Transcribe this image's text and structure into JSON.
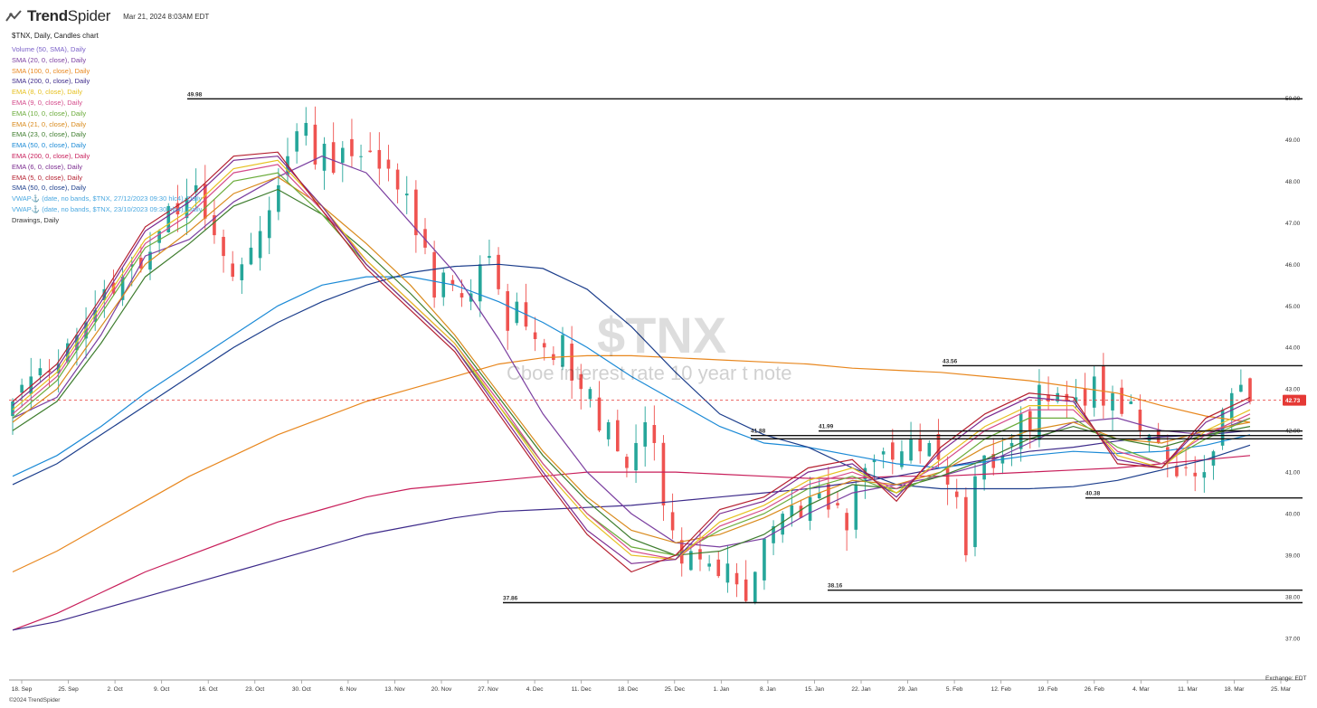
{
  "header": {
    "logo_text_bold": "Trend",
    "logo_text_light": "Spider",
    "timestamp": "Mar 21, 2024 8:03AM EDT",
    "subtitle": "$TNX, Daily, Candles chart",
    "watermark_symbol": "$TNX",
    "watermark_name": "Cboe interest rate 10 year t note",
    "copyright": "©2024 TrendSpider",
    "exchange": "Exchange: EDT"
  },
  "legend": [
    {
      "label": "Volume (50, SMA), Daily",
      "color": "#7b61c9"
    },
    {
      "label": "SMA (20, 0, close), Daily",
      "color": "#7b3fa0"
    },
    {
      "label": "SMA (100, 0, close), Daily",
      "color": "#e8871e"
    },
    {
      "label": "SMA (200, 0, close), Daily",
      "color": "#3d2a8a"
    },
    {
      "label": "EMA (8, 0, close), Daily",
      "color": "#e6c020"
    },
    {
      "label": "EMA (9, 0, close), Daily",
      "color": "#d44a8a"
    },
    {
      "label": "EMA (10, 0, close), Daily",
      "color": "#6aab3a"
    },
    {
      "label": "EMA (21, 0, close), Daily",
      "color": "#d98a1c"
    },
    {
      "label": "EMA (23, 0, close), Daily",
      "color": "#3e7d2e"
    },
    {
      "label": "EMA (50, 0, close), Daily",
      "color": "#1b8ad6"
    },
    {
      "label": "EMA (200, 0, close), Daily",
      "color": "#c81e5a"
    },
    {
      "label": "EMA (6, 0, close), Daily",
      "color": "#7a2a8f"
    },
    {
      "label": "EMA (5, 0, close), Daily",
      "color": "#b52030"
    },
    {
      "label": "SMA (50, 0, close), Daily",
      "color": "#1c3e8c"
    },
    {
      "label": "VWAP⚓ (date, no bands, $TNX, 27/12/2023 09:30 hlc4), Daily",
      "color": "#4aa8e0"
    },
    {
      "label": "VWAP⚓ (date, no bands, $TNX, 23/10/2023 09:30 hlc4), Daily",
      "color": "#4aa8e0"
    },
    {
      "label": "Drawings, Daily",
      "color": "#333333"
    }
  ],
  "chart_data": {
    "type": "candlestick",
    "symbol": "$TNX",
    "ylim": [
      36,
      50.4
    ],
    "y_ticks": [
      "37.00",
      "38.00",
      "39.00",
      "40.00",
      "41.00",
      "42.00",
      "43.00",
      "44.00",
      "45.00",
      "46.00",
      "47.00",
      "48.00",
      "49.00",
      "50.00"
    ],
    "x_ticks": [
      "18. Sep",
      "25. Sep",
      "2. Oct",
      "9. Oct",
      "16. Oct",
      "23. Oct",
      "30. Oct",
      "6. Nov",
      "13. Nov",
      "20. Nov",
      "27. Nov",
      "4. Dec",
      "11. Dec",
      "18. Dec",
      "25. Dec",
      "1. Jan",
      "8. Jan",
      "15. Jan",
      "22. Jan",
      "29. Jan",
      "5. Feb",
      "12. Feb",
      "19. Feb",
      "26. Feb",
      "4. Mar",
      "11. Mar",
      "18. Mar",
      "25. Mar"
    ],
    "closes": [
      42.7,
      43.1,
      43.3,
      43.5,
      43.4,
      43.6,
      44.1,
      44.3,
      44.6,
      44.9,
      45.4,
      45.3,
      45.7,
      46.0,
      45.9,
      46.3,
      46.8,
      47.4,
      47.2,
      47.6,
      47.9,
      47.1,
      46.7,
      46.2,
      45.7,
      46.0,
      46.4,
      46.8,
      47.3,
      47.9,
      48.6,
      49.2,
      49.4,
      48.4,
      48.9,
      48.2,
      48.8,
      48.6,
      48.6,
      48.7,
      48.3,
      48.3,
      47.8,
      47.7,
      46.7,
      46.4,
      45.2,
      45.8,
      45.5,
      45.2,
      45.3,
      46.0,
      46.2,
      45.4,
      44.4,
      45.1,
      44.5,
      44.2,
      44.0,
      43.7,
      44.3,
      43.2,
      43.0,
      43.0,
      42.0,
      42.2,
      41.5,
      41.1,
      41.7,
      42.2,
      41.7,
      40.2,
      39.6,
      38.8,
      39.1,
      38.9,
      38.8,
      38.5,
      38.8,
      38.3,
      37.9,
      38.6,
      39.4,
      39.7,
      40.0,
      40.2,
      39.9,
      40.4,
      40.5,
      40.1,
      40.2,
      39.6,
      40.7,
      41.1,
      41.3,
      41.5,
      41.3,
      41.5,
      41.8,
      41.5,
      41.7,
      41.3,
      40.7,
      40.4,
      39.0,
      40.9,
      41.4,
      41.1,
      41.4,
      41.7,
      42.4,
      42.0,
      43.1,
      42.7,
      42.9,
      42.7,
      42.8,
      42.6,
      43.3,
      42.6,
      42.9,
      42.4,
      42.7,
      42.0,
      41.9,
      41.7,
      41.3,
      40.9,
      41.1,
      40.9,
      41.0,
      41.5,
      42.5,
      42.9,
      43.1,
      42.7
    ],
    "ma_series": [
      {
        "label": "EMA (200, 0, close), Daily",
        "color": "#c81e5a",
        "values": [
          37.2,
          37.6,
          38.1,
          38.6,
          39.0,
          39.4,
          39.8,
          40.1,
          40.4,
          40.6,
          40.7,
          40.8,
          40.9,
          41.0,
          41.0,
          41.0,
          40.95,
          40.9,
          40.85,
          40.85,
          40.9,
          40.9,
          40.95,
          41.0,
          41.05,
          41.1,
          41.2,
          41.3,
          41.4
        ]
      },
      {
        "label": "SMA (200, 0, close), Daily",
        "color": "#3d2a8a",
        "values": [
          37.2,
          37.4,
          37.7,
          38.0,
          38.3,
          38.6,
          38.9,
          39.2,
          39.5,
          39.7,
          39.9,
          40.05,
          40.1,
          40.15,
          40.2,
          40.3,
          40.4,
          40.5,
          40.6,
          40.75,
          40.9,
          41.1,
          41.3,
          41.5,
          41.6,
          41.75,
          41.85,
          41.9,
          42.0
        ]
      },
      {
        "label": "SMA (100, 0, close), Daily",
        "color": "#e8871e",
        "values": [
          38.6,
          39.1,
          39.7,
          40.3,
          40.9,
          41.4,
          41.9,
          42.3,
          42.7,
          43.0,
          43.3,
          43.6,
          43.75,
          43.8,
          43.8,
          43.75,
          43.7,
          43.65,
          43.6,
          43.5,
          43.45,
          43.4,
          43.3,
          43.2,
          43.05,
          42.9,
          42.6,
          42.35,
          42.2
        ]
      },
      {
        "label": "EMA (50, 0, close), Daily",
        "color": "#1b8ad6",
        "values": [
          40.9,
          41.4,
          42.1,
          42.9,
          43.6,
          44.3,
          45.0,
          45.5,
          45.7,
          45.7,
          45.5,
          45.1,
          44.6,
          44.0,
          43.3,
          42.7,
          42.1,
          41.7,
          41.6,
          41.4,
          41.2,
          41.1,
          41.25,
          41.4,
          41.5,
          41.45,
          41.5,
          41.65,
          41.9
        ]
      },
      {
        "label": "SMA (50, 0, close), Daily",
        "color": "#1c3e8c",
        "values": [
          40.7,
          41.2,
          41.9,
          42.6,
          43.3,
          44.0,
          44.6,
          45.1,
          45.5,
          45.8,
          45.95,
          46.0,
          45.9,
          45.4,
          44.5,
          43.4,
          42.4,
          41.9,
          41.6,
          41.1,
          40.7,
          40.6,
          40.6,
          40.6,
          40.65,
          40.8,
          41.05,
          41.3,
          41.65
        ]
      },
      {
        "label": "SMA (20, 0, close), Daily",
        "color": "#7b3fa0",
        "values": [
          42.3,
          42.8,
          44.3,
          46.2,
          46.6,
          47.5,
          48.1,
          48.6,
          48.2,
          47.0,
          45.8,
          44.2,
          42.4,
          41.0,
          40.0,
          39.3,
          39.2,
          39.4,
          40.0,
          40.5,
          40.7,
          40.9,
          41.2,
          41.7,
          42.2,
          42.3,
          42.0,
          41.9,
          42.3
        ]
      },
      {
        "label": "EMA (21, 0, close), Daily",
        "color": "#d98a1c",
        "values": [
          42.2,
          43.0,
          44.5,
          46.0,
          46.8,
          47.7,
          48.1,
          47.4,
          46.5,
          45.5,
          44.3,
          42.9,
          41.5,
          40.4,
          39.6,
          39.3,
          39.5,
          39.9,
          40.4,
          40.8,
          40.7,
          41.0,
          41.6,
          42.0,
          42.2,
          41.8,
          41.7,
          42.0,
          42.2
        ]
      },
      {
        "label": "EMA (23, 0, close), Daily",
        "color": "#3e7d2e",
        "values": [
          42.0,
          42.7,
          44.1,
          45.7,
          46.5,
          47.4,
          47.8,
          47.2,
          46.3,
          45.3,
          44.2,
          42.8,
          41.4,
          40.3,
          39.4,
          39.0,
          39.1,
          39.5,
          40.2,
          40.7,
          40.6,
          40.9,
          41.3,
          41.8,
          42.1,
          41.8,
          41.6,
          41.9,
          42.1
        ]
      },
      {
        "label": "EMA (10, 0, close), Daily",
        "color": "#6aab3a",
        "values": [
          42.3,
          43.2,
          44.8,
          46.4,
          47.0,
          48.0,
          48.2,
          47.2,
          46.0,
          45.0,
          44.0,
          42.6,
          41.2,
          40.0,
          39.2,
          39.0,
          39.6,
          40.0,
          40.6,
          40.9,
          40.5,
          41.0,
          41.8,
          42.3,
          42.3,
          41.6,
          41.2,
          41.8,
          42.3
        ]
      },
      {
        "label": "EMA (9, 0, close), Daily",
        "color": "#d44a8a",
        "values": [
          42.4,
          43.3,
          44.9,
          46.5,
          47.2,
          48.2,
          48.4,
          47.3,
          46.1,
          45.1,
          44.1,
          42.7,
          41.2,
          40.0,
          39.1,
          38.9,
          39.7,
          40.1,
          40.7,
          41.0,
          40.6,
          41.2,
          42.0,
          42.5,
          42.5,
          41.5,
          41.2,
          41.9,
          42.4
        ]
      },
      {
        "label": "EMA (8, 0, close), Daily",
        "color": "#e6c020",
        "values": [
          42.5,
          43.4,
          45.0,
          46.6,
          47.3,
          48.3,
          48.5,
          47.4,
          46.1,
          45.1,
          44.1,
          42.6,
          41.1,
          39.9,
          39.0,
          38.9,
          39.8,
          40.2,
          40.8,
          41.1,
          40.5,
          41.3,
          42.1,
          42.6,
          42.6,
          41.4,
          41.1,
          42.0,
          42.5
        ]
      },
      {
        "label": "EMA (6, 0, close), Daily",
        "color": "#7a2a8f",
        "values": [
          42.6,
          43.5,
          45.1,
          46.8,
          47.5,
          48.5,
          48.6,
          47.4,
          46.0,
          45.0,
          44.0,
          42.5,
          41.0,
          39.6,
          38.8,
          38.9,
          40.0,
          40.3,
          41.0,
          41.2,
          40.4,
          41.5,
          42.3,
          42.8,
          42.7,
          41.3,
          41.1,
          42.2,
          42.7
        ]
      },
      {
        "label": "EMA (5, 0, close), Daily",
        "color": "#b52030",
        "values": [
          42.7,
          43.6,
          45.2,
          46.9,
          47.6,
          48.6,
          48.7,
          47.3,
          45.9,
          44.9,
          43.9,
          42.4,
          40.9,
          39.5,
          38.6,
          39.0,
          40.1,
          40.4,
          41.1,
          41.3,
          40.3,
          41.6,
          42.4,
          42.9,
          42.8,
          41.2,
          41.1,
          42.3,
          42.8
        ]
      }
    ],
    "levels": [
      {
        "label": "49.98",
        "value": 49.98
      },
      {
        "label": "43.56",
        "value": 43.56
      },
      {
        "label": "41.88",
        "value": 41.88
      },
      {
        "label": "41.99",
        "value": 41.99
      },
      {
        "label": "40.38",
        "value": 40.38
      },
      {
        "label": "38.16",
        "value": 38.16
      },
      {
        "label": "37.86",
        "value": 37.86
      }
    ],
    "last_price": {
      "label": "42.73",
      "value": 42.73,
      "color": "#e53935"
    },
    "candle_colors": {
      "up": "#26a69a",
      "down": "#ef5350"
    }
  }
}
